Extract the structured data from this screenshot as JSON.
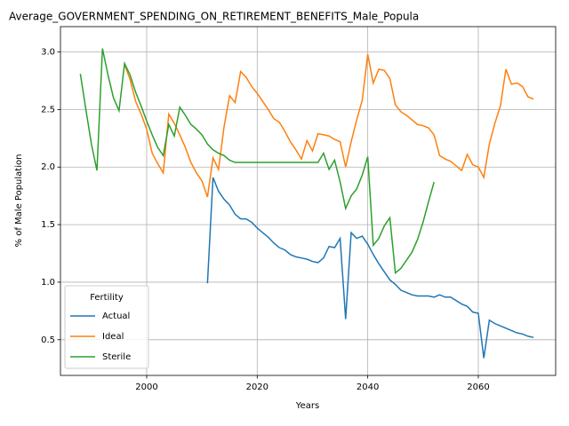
{
  "chart_data": {
    "type": "line",
    "title": "Average_GOVERNMENT_SPENDING_ON_RETIREMENT_BENEFITS_Male_Popula",
    "x_label": "Years",
    "y_label": "% of Male Population",
    "legend_title": "Fertility",
    "legend": "lower left",
    "grid": true,
    "xlim": [
      1984.4,
      2074
    ],
    "ylim": [
      0.19,
      3.22
    ],
    "xticks": [
      2000,
      2020,
      2040,
      2060
    ],
    "yticks": [
      0.5,
      {
        "value": 1,
        "label": "1.0"
      },
      1.5,
      {
        "value": 2,
        "label": "2.0"
      },
      2.5,
      {
        "value": 3,
        "label": "3.0"
      }
    ],
    "series": [
      {
        "name": "Actual",
        "color": "#1f77b4",
        "x": [
          2011,
          2012,
          2013,
          2014,
          2015,
          2016,
          2017,
          2018,
          2019,
          2020,
          2021,
          2022,
          2023,
          2024,
          2025,
          2026,
          2027,
          2028,
          2029,
          2030,
          2031,
          2032,
          2033,
          2034,
          2035,
          2036,
          2037,
          2038,
          2039,
          2040,
          2041,
          2042,
          2043,
          2044,
          2045,
          2046,
          2047,
          2048,
          2049,
          2050,
          2051,
          2052,
          2053,
          2054,
          2055,
          2056,
          2057,
          2058,
          2059,
          2060,
          2061,
          2062,
          2063,
          2064,
          2065,
          2066,
          2067,
          2068,
          2069,
          2070
        ],
        "values": [
          0.99,
          1.91,
          1.79,
          1.72,
          1.67,
          1.59,
          1.55,
          1.55,
          1.52,
          1.47,
          1.43,
          1.39,
          1.34,
          1.3,
          1.28,
          1.24,
          1.22,
          1.21,
          1.2,
          1.18,
          1.17,
          1.21,
          1.31,
          1.3,
          1.38,
          0.68,
          1.43,
          1.38,
          1.4,
          1.33,
          1.24,
          1.16,
          1.09,
          1.02,
          0.98,
          0.93,
          0.91,
          0.89,
          0.88,
          0.88,
          0.88,
          0.87,
          0.89,
          0.87,
          0.87,
          0.84,
          0.81,
          0.79,
          0.74,
          0.73,
          0.34,
          0.67,
          0.64,
          0.62,
          0.6,
          0.58,
          0.56,
          0.55,
          0.53,
          0.52
        ]
      },
      {
        "name": "Ideal",
        "color": "#ff7f0e",
        "x": [
          1996,
          1997,
          1998,
          1999,
          2000,
          2001,
          2002,
          2003,
          2004,
          2005,
          2006,
          2007,
          2008,
          2009,
          2010,
          2011,
          2012,
          2013,
          2014,
          2015,
          2016,
          2017,
          2018,
          2019,
          2020,
          2021,
          2022,
          2023,
          2024,
          2025,
          2026,
          2027,
          2028,
          2029,
          2030,
          2031,
          2032,
          2033,
          2034,
          2035,
          2036,
          2037,
          2038,
          2039,
          2040,
          2041,
          2042,
          2043,
          2044,
          2045,
          2046,
          2047,
          2048,
          2049,
          2050,
          2051,
          2052,
          2053,
          2054,
          2055,
          2056,
          2057,
          2058,
          2059,
          2060,
          2061,
          2062,
          2063,
          2064,
          2065,
          2066,
          2067,
          2068,
          2069,
          2070
        ],
        "values": [
          2.89,
          2.76,
          2.57,
          2.46,
          2.33,
          2.12,
          2.03,
          1.95,
          2.46,
          2.38,
          2.28,
          2.17,
          2.04,
          1.95,
          1.88,
          1.74,
          2.08,
          1.98,
          2.35,
          2.62,
          2.56,
          2.83,
          2.78,
          2.7,
          2.64,
          2.57,
          2.5,
          2.42,
          2.39,
          2.31,
          2.22,
          2.15,
          2.07,
          2.23,
          2.14,
          2.29,
          2.28,
          2.27,
          2.24,
          2.22,
          2.0,
          2.22,
          2.41,
          2.58,
          2.98,
          2.73,
          2.85,
          2.84,
          2.77,
          2.54,
          2.48,
          2.45,
          2.41,
          2.37,
          2.36,
          2.34,
          2.28,
          2.1,
          2.07,
          2.05,
          2.01,
          1.97,
          2.11,
          2.02,
          2.0,
          1.91,
          2.2,
          2.38,
          2.53,
          2.85,
          2.72,
          2.73,
          2.7,
          2.61,
          2.59
        ]
      },
      {
        "name": "Sterile",
        "color": "#2ca02c",
        "x": [
          1988,
          1989,
          1990,
          1991,
          1992,
          1993,
          1994,
          1995,
          1996,
          1997,
          1998,
          1999,
          2000,
          2001,
          2002,
          2003,
          2004,
          2005,
          2006,
          2007,
          2008,
          2009,
          2010,
          2011,
          2012,
          2013,
          2014,
          2015,
          2016,
          2017,
          2018,
          2019,
          2020,
          2021,
          2022,
          2023,
          2024,
          2025,
          2026,
          2027,
          2028,
          2029,
          2030,
          2031,
          2032,
          2033,
          2034,
          2035,
          2036,
          2037,
          2038,
          2039,
          2040,
          2041,
          2042,
          2043,
          2044,
          2045,
          2046,
          2047,
          2048,
          2049,
          2050,
          2051,
          2052
        ],
        "values": [
          2.81,
          2.5,
          2.2,
          1.97,
          3.03,
          2.8,
          2.6,
          2.49,
          2.9,
          2.8,
          2.65,
          2.53,
          2.4,
          2.28,
          2.17,
          2.1,
          2.37,
          2.27,
          2.52,
          2.45,
          2.37,
          2.33,
          2.28,
          2.2,
          2.15,
          2.12,
          2.1,
          2.06,
          2.04,
          2.04,
          2.04,
          2.04,
          2.04,
          2.04,
          2.04,
          2.04,
          2.04,
          2.04,
          2.04,
          2.04,
          2.04,
          2.04,
          2.04,
          2.04,
          2.12,
          1.98,
          2.06,
          1.87,
          1.64,
          1.75,
          1.81,
          1.93,
          2.09,
          1.32,
          1.38,
          1.49,
          1.56,
          1.08,
          1.12,
          1.19,
          1.26,
          1.37,
          1.52,
          1.7,
          1.87
        ]
      }
    ]
  }
}
